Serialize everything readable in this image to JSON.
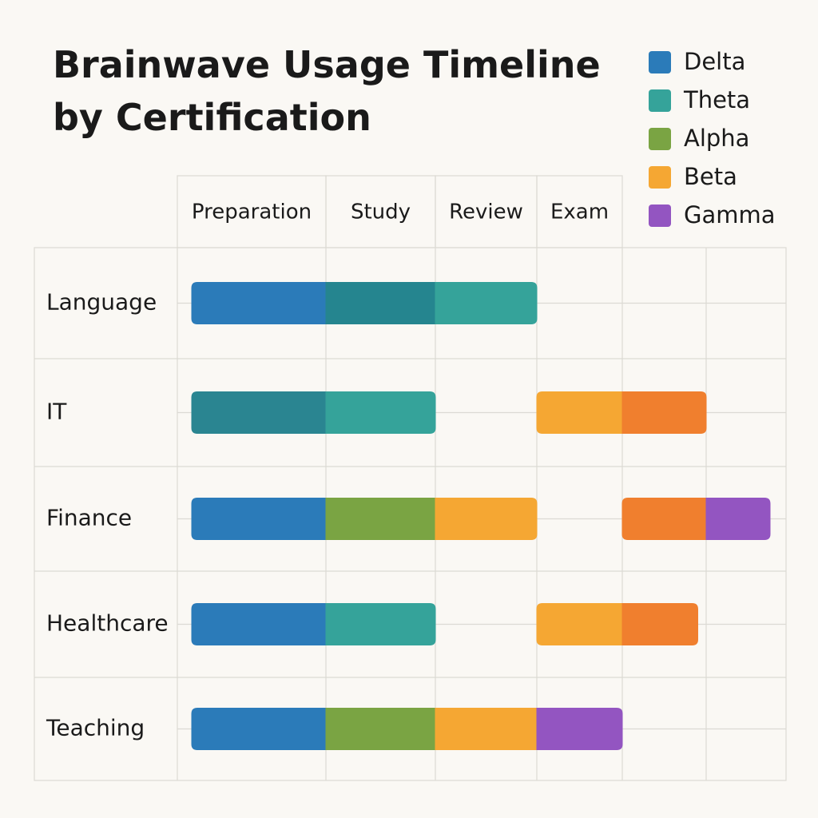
{
  "chart_data": {
    "type": "timeline",
    "title": "Brainwave Usage Timeline by Certification",
    "categories": [
      "Preparation",
      "Study",
      "Review",
      "Exam",
      null,
      null
    ],
    "series": [
      {
        "name": "Delta",
        "color": "#2b7bb9"
      },
      {
        "name": "Theta",
        "color": "#35a39a"
      },
      {
        "name": "Alpha",
        "color": "#7aa443"
      },
      {
        "name": "Beta",
        "color": "#f5a733"
      },
      {
        "name": "Gamma",
        "color": "#9355c1"
      }
    ],
    "rows": [
      {
        "label": "Language",
        "segments": [
          {
            "start": 0,
            "end": 1,
            "color": "#2b7bb9"
          },
          {
            "start": 1,
            "end": 2,
            "color": "#25858f"
          },
          {
            "start": 2,
            "end": 3,
            "color": "#35a39a"
          }
        ]
      },
      {
        "label": "IT",
        "segments": [
          {
            "start": 0,
            "end": 1,
            "color": "#2a8591"
          },
          {
            "start": 1,
            "end": 2,
            "color": "#35a39a"
          },
          {
            "start": 3,
            "end": 4,
            "color": "#f5a733"
          },
          {
            "start": 4,
            "end": 5,
            "color": "#f07f2e"
          }
        ]
      },
      {
        "label": "Finance",
        "segments": [
          {
            "start": 0,
            "end": 1,
            "color": "#2b7bb9"
          },
          {
            "start": 1,
            "end": 2,
            "color": "#7aa443"
          },
          {
            "start": 2,
            "end": 3,
            "color": "#f5a733"
          },
          {
            "start": 4,
            "end": 5,
            "color": "#f07f2e"
          },
          {
            "start": 5,
            "end": 5.8,
            "color": "#9355c1"
          }
        ]
      },
      {
        "label": "Healthcare",
        "segments": [
          {
            "start": 0,
            "end": 1,
            "color": "#2b7bb9"
          },
          {
            "start": 1,
            "end": 2,
            "color": "#35a39a"
          },
          {
            "start": 3,
            "end": 4,
            "color": "#f5a733"
          },
          {
            "start": 4,
            "end": 4.9,
            "color": "#f07f2e"
          }
        ]
      },
      {
        "label": "Teaching",
        "segments": [
          {
            "start": 0,
            "end": 1,
            "color": "#2b7bb9"
          },
          {
            "start": 1,
            "end": 2,
            "color": "#7aa443"
          },
          {
            "start": 2,
            "end": 3,
            "color": "#f5a733"
          },
          {
            "start": 3,
            "end": 4,
            "color": "#9355c1"
          }
        ]
      }
    ]
  }
}
